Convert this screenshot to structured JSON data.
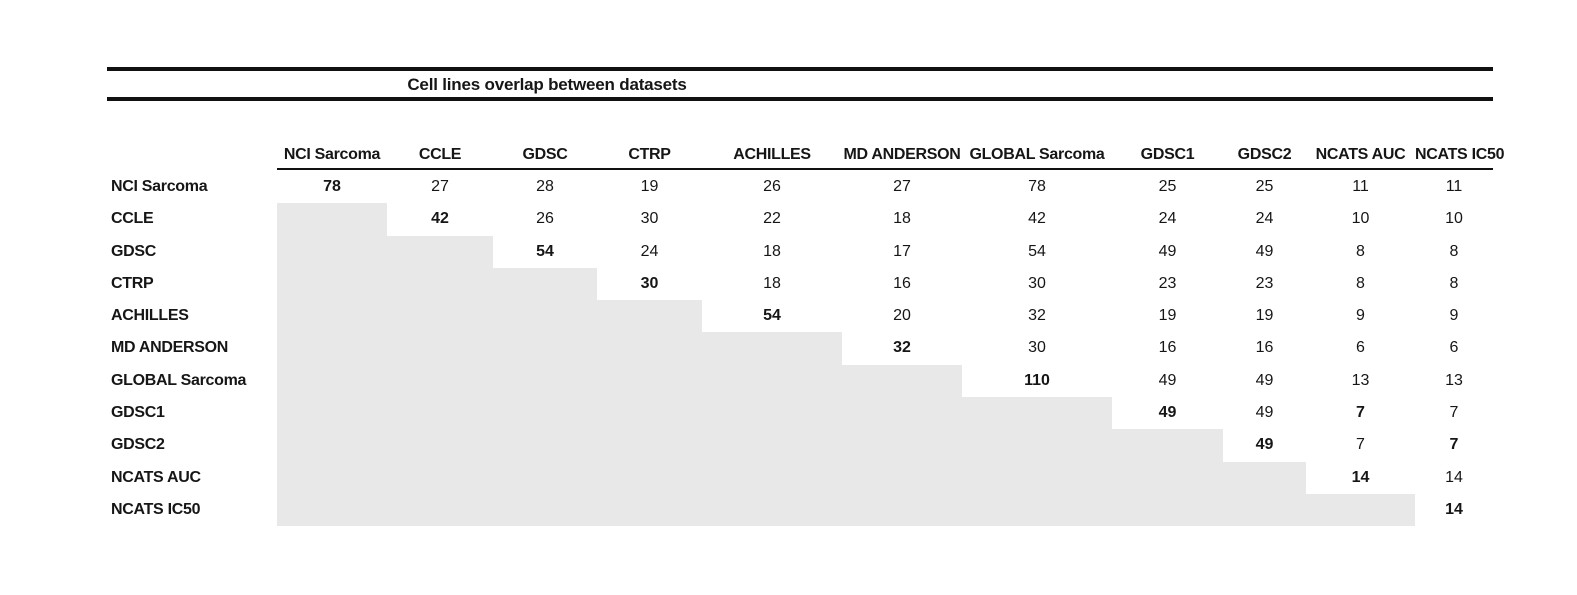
{
  "title": "Cell lines overlap between datasets",
  "colors": {
    "shade": "#e8e8e8",
    "rule": "#111111",
    "text": "#161616"
  },
  "matrix": {
    "columns": [
      "NCI Sarcoma",
      "CCLE",
      "GDSC",
      "CTRP",
      "ACHILLES",
      "MD ANDERSON",
      "GLOBAL Sarcoma",
      "GDSC1",
      "GDSC2",
      "NCATS AUC",
      "NCATS IC50"
    ],
    "rows": [
      {
        "label": "NCI Sarcoma",
        "cells": [
          {
            "value": "78",
            "bold": true
          },
          {
            "value": "27"
          },
          {
            "value": "28"
          },
          {
            "value": "19"
          },
          {
            "value": "26"
          },
          {
            "value": "27"
          },
          {
            "value": "78"
          },
          {
            "value": "25"
          },
          {
            "value": "25"
          },
          {
            "value": "11"
          },
          {
            "value": "11"
          }
        ]
      },
      {
        "label": "CCLE",
        "cells": [
          {
            "shaded": true
          },
          {
            "value": "42",
            "bold": true
          },
          {
            "value": "26"
          },
          {
            "value": "30"
          },
          {
            "value": "22"
          },
          {
            "value": "18"
          },
          {
            "value": "42"
          },
          {
            "value": "24"
          },
          {
            "value": "24"
          },
          {
            "value": "10"
          },
          {
            "value": "10"
          }
        ]
      },
      {
        "label": "GDSC",
        "cells": [
          {
            "shaded": true
          },
          {
            "shaded": true
          },
          {
            "value": "54",
            "bold": true
          },
          {
            "value": "24"
          },
          {
            "value": "18"
          },
          {
            "value": "17"
          },
          {
            "value": "54"
          },
          {
            "value": "49"
          },
          {
            "value": "49"
          },
          {
            "value": "8"
          },
          {
            "value": "8"
          }
        ]
      },
      {
        "label": "CTRP",
        "cells": [
          {
            "shaded": true
          },
          {
            "shaded": true
          },
          {
            "shaded": true
          },
          {
            "value": "30",
            "bold": true
          },
          {
            "value": "18"
          },
          {
            "value": "16"
          },
          {
            "value": "30"
          },
          {
            "value": "23"
          },
          {
            "value": "23"
          },
          {
            "value": "8"
          },
          {
            "value": "8"
          }
        ]
      },
      {
        "label": "ACHILLES",
        "cells": [
          {
            "shaded": true
          },
          {
            "shaded": true
          },
          {
            "shaded": true
          },
          {
            "shaded": true
          },
          {
            "value": "54",
            "bold": true
          },
          {
            "value": "20"
          },
          {
            "value": "32"
          },
          {
            "value": "19"
          },
          {
            "value": "19"
          },
          {
            "value": "9"
          },
          {
            "value": "9"
          }
        ]
      },
      {
        "label": "MD ANDERSON",
        "cells": [
          {
            "shaded": true
          },
          {
            "shaded": true
          },
          {
            "shaded": true
          },
          {
            "shaded": true
          },
          {
            "shaded": true
          },
          {
            "value": "32",
            "bold": true
          },
          {
            "value": "30"
          },
          {
            "value": "16"
          },
          {
            "value": "16"
          },
          {
            "value": "6"
          },
          {
            "value": "6"
          }
        ]
      },
      {
        "label": "GLOBAL Sarcoma",
        "cells": [
          {
            "shaded": true
          },
          {
            "shaded": true
          },
          {
            "shaded": true
          },
          {
            "shaded": true
          },
          {
            "shaded": true
          },
          {
            "shaded": true
          },
          {
            "value": "110",
            "bold": true
          },
          {
            "value": "49"
          },
          {
            "value": "49"
          },
          {
            "value": "13"
          },
          {
            "value": "13"
          }
        ]
      },
      {
        "label": "GDSC1",
        "cells": [
          {
            "shaded": true
          },
          {
            "shaded": true
          },
          {
            "shaded": true
          },
          {
            "shaded": true
          },
          {
            "shaded": true
          },
          {
            "shaded": true
          },
          {
            "shaded": true
          },
          {
            "value": "49",
            "bold": true
          },
          {
            "value": "49"
          },
          {
            "value": "7",
            "bold": true
          },
          {
            "value": "7"
          }
        ]
      },
      {
        "label": "GDSC2",
        "cells": [
          {
            "shaded": true
          },
          {
            "shaded": true
          },
          {
            "shaded": true
          },
          {
            "shaded": true
          },
          {
            "shaded": true
          },
          {
            "shaded": true
          },
          {
            "shaded": true
          },
          {
            "shaded": true
          },
          {
            "value": "49",
            "bold": true
          },
          {
            "value": "7"
          },
          {
            "value": "7",
            "bold": true
          }
        ]
      },
      {
        "label": "NCATS AUC",
        "cells": [
          {
            "shaded": true
          },
          {
            "shaded": true
          },
          {
            "shaded": true
          },
          {
            "shaded": true
          },
          {
            "shaded": true
          },
          {
            "shaded": true
          },
          {
            "shaded": true
          },
          {
            "shaded": true
          },
          {
            "shaded": true
          },
          {
            "value": "14",
            "bold": true
          },
          {
            "value": "14"
          }
        ]
      },
      {
        "label": "NCATS IC50",
        "cells": [
          {
            "shaded": true
          },
          {
            "shaded": true
          },
          {
            "shaded": true
          },
          {
            "shaded": true
          },
          {
            "shaded": true
          },
          {
            "shaded": true
          },
          {
            "shaded": true
          },
          {
            "shaded": true
          },
          {
            "shaded": true
          },
          {
            "shaded": true
          },
          {
            "value": "14",
            "bold": true
          }
        ]
      }
    ]
  }
}
